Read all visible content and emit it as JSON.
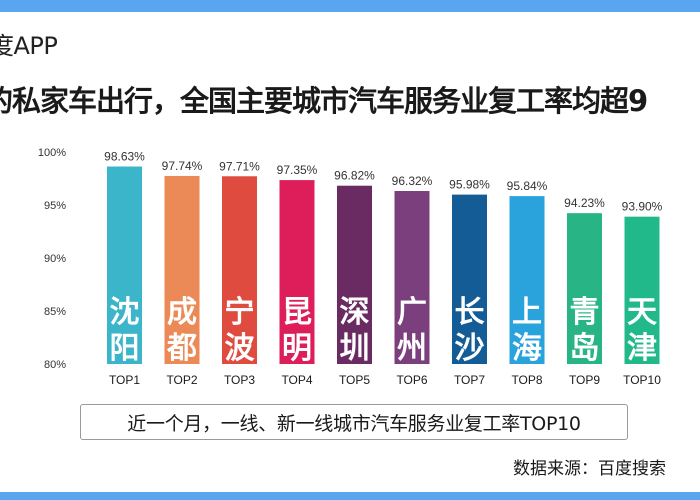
{
  "header": {
    "app_label": "度APP",
    "headline": "的私家车出行，全国主要城市汽车服务业复工率均超9"
  },
  "caption": "近一个月，一线、新一线城市汽车服务业复工率TOP10",
  "source": "数据来源：百度搜索",
  "chart_data": {
    "type": "bar",
    "title": "近一个月，一线、新一线城市汽车服务业复工率TOP10",
    "categories": [
      "TOP1",
      "TOP2",
      "TOP3",
      "TOP4",
      "TOP5",
      "TOP6",
      "TOP7",
      "TOP8",
      "TOP9",
      "TOP10"
    ],
    "cities": [
      [
        "沈",
        "阳"
      ],
      [
        "成",
        "都"
      ],
      [
        "宁",
        "波"
      ],
      [
        "昆",
        "明"
      ],
      [
        "深",
        "圳"
      ],
      [
        "广",
        "州"
      ],
      [
        "长",
        "沙"
      ],
      [
        "上",
        "海"
      ],
      [
        "青",
        "岛"
      ],
      [
        "天",
        "津"
      ]
    ],
    "values": [
      98.63,
      97.74,
      97.71,
      97.35,
      96.82,
      96.32,
      95.98,
      95.84,
      94.23,
      93.9
    ],
    "value_labels": [
      "98.63%",
      "97.74%",
      "97.71%",
      "97.35%",
      "96.82%",
      "96.32%",
      "95.98%",
      "95.84%",
      "94.23%",
      "93.90%"
    ],
    "colors": [
      "#3bb5c9",
      "#ec8a57",
      "#e04b3f",
      "#dd1e5a",
      "#6a2a62",
      "#7b3f7d",
      "#145c96",
      "#2aa3dd",
      "#29b486",
      "#21b98a"
    ],
    "yticks": [
      80,
      85,
      90,
      95,
      100
    ],
    "ytick_labels": [
      "80%",
      "85%",
      "90%",
      "95%",
      "100%"
    ],
    "ylim": [
      80,
      100
    ],
    "xlabel": "",
    "ylabel": "",
    "grid": false
  }
}
